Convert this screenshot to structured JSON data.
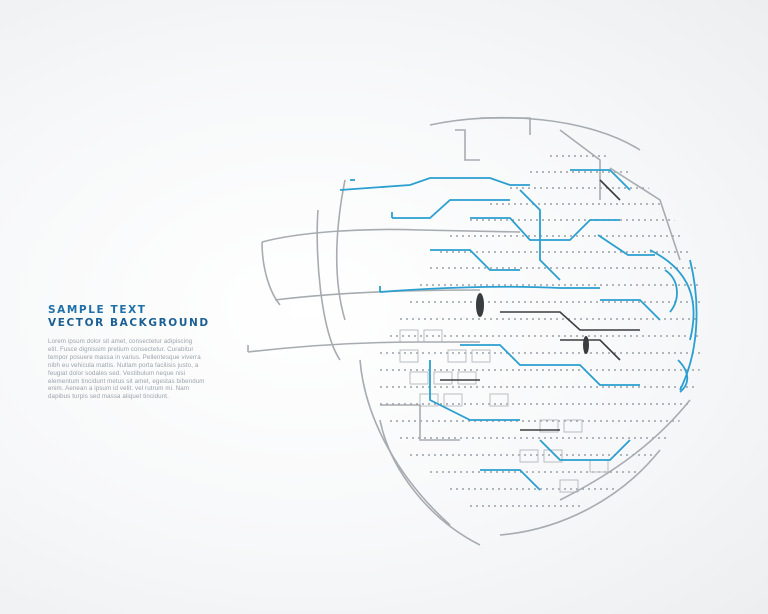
{
  "heading": {
    "line1": "SAMPLE TEXT",
    "line2": "VECTOR BACKGROUND"
  },
  "body_lines": [
    "Lorem ipsum dolor sit amet, consectetur adipiscing",
    "elit. Fusce dignissim pretium consectetur. Curabitur",
    "tempor posuere massa in varius. Pellentesque viverra",
    "nibh eu vehicula mattis. Nullam porta facilisis justo, a",
    "feugiat dolor sodales sed. Vestibulum neque nisi",
    "elementum tincidunt metus sit amet, egestas bibendum",
    "enim. Aenean a ipsum id velit. vel rutrum mi. Nam",
    "dapibus turpis sed massa aliquet tincidunt."
  ],
  "colors": {
    "accent_blue": "#2a9fd0",
    "dark_blue": "#1f6fa8",
    "line_gray": "#8a8f94",
    "dark_gray": "#3a3d40"
  },
  "graphic": "tech-circuit-sphere"
}
